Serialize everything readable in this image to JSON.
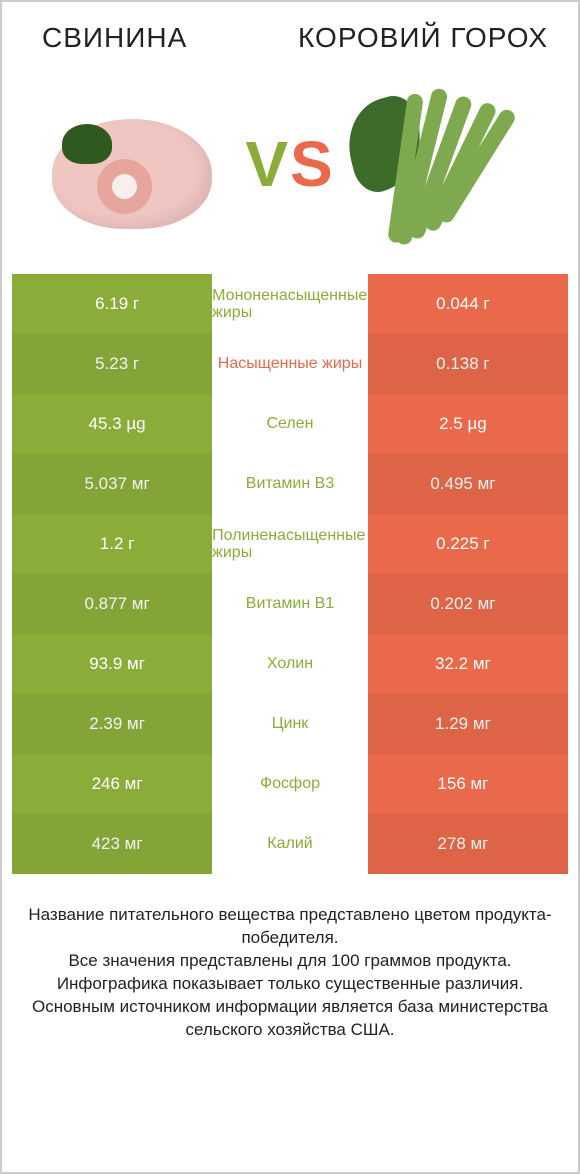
{
  "titles": {
    "left": "СВИНИНА",
    "right": "КОРОВИЙ ГОРОХ"
  },
  "vs": {
    "v": "V",
    "s": "S"
  },
  "colors": {
    "green": "#8aad3a",
    "orange": "#e9694a",
    "text": "#222222",
    "background": "#ffffff"
  },
  "left_color_key": "green",
  "right_color_key": "orange",
  "rows": [
    {
      "left": "6.19 г",
      "label": "Мононенасыщенные жиры",
      "right": "0.044 г",
      "winner": "left"
    },
    {
      "left": "5.23 г",
      "label": "Насыщенные жиры",
      "right": "0.138 г",
      "winner": "right"
    },
    {
      "left": "45.3 µg",
      "label": "Селен",
      "right": "2.5 µg",
      "winner": "left"
    },
    {
      "left": "5.037 мг",
      "label": "Витамин B3",
      "right": "0.495 мг",
      "winner": "left"
    },
    {
      "left": "1.2 г",
      "label": "Полиненасыщенные жиры",
      "right": "0.225 г",
      "winner": "left"
    },
    {
      "left": "0.877 мг",
      "label": "Витамин B1",
      "right": "0.202 мг",
      "winner": "left"
    },
    {
      "left": "93.9 мг",
      "label": "Холин",
      "right": "32.2 мг",
      "winner": "left"
    },
    {
      "left": "2.39 мг",
      "label": "Цинк",
      "right": "1.29 мг",
      "winner": "left"
    },
    {
      "left": "246 мг",
      "label": "Фосфор",
      "right": "156 мг",
      "winner": "left"
    },
    {
      "left": "423 мг",
      "label": "Калий",
      "right": "278 мг",
      "winner": "left"
    }
  ],
  "footer": "Название питательного вещества представлено цветом продукта-победителя.\nВсе значения представлены для 100 граммов продукта.\nИнфографика показывает только существенные различия.\nОсновным источником информации является база министерства сельского хозяйства США."
}
